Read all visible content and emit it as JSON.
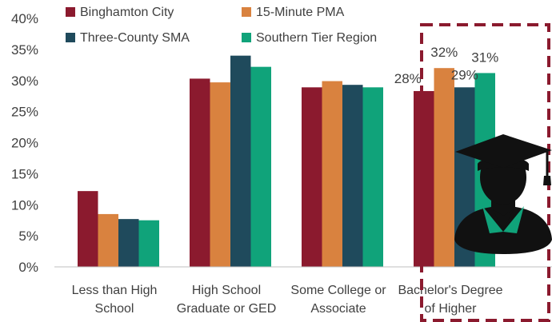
{
  "chart_data": {
    "type": "bar",
    "categories": [
      [
        "Less than High",
        "School"
      ],
      [
        "High School",
        "Graduate or GED"
      ],
      [
        "Some College or",
        "Associate"
      ],
      [
        "Bachelor's Degree",
        "of Higher"
      ]
    ],
    "series": [
      {
        "name": "Binghamton City",
        "color": "#8B1A2E",
        "values": [
          12.2,
          30.3,
          28.9,
          28.3
        ]
      },
      {
        "name": "15-Minute PMA",
        "color": "#D9823F",
        "values": [
          8.5,
          29.7,
          29.9,
          32.0
        ]
      },
      {
        "name": "Three-County SMA",
        "color": "#1F4A5C",
        "values": [
          7.7,
          34.0,
          29.3,
          28.9
        ]
      },
      {
        "name": "Southern Tier Region",
        "color": "#10A37A",
        "values": [
          7.5,
          32.2,
          28.9,
          31.2
        ]
      }
    ],
    "data_labels": {
      "category_index": 3,
      "labels": [
        "28%",
        "32%",
        "29%",
        "31%"
      ]
    },
    "ylim": [
      0,
      40
    ],
    "yticks": [
      "0%",
      "5%",
      "10%",
      "15%",
      "20%",
      "25%",
      "30%",
      "35%",
      "40%"
    ],
    "grid": false,
    "legend_position": "top",
    "highlight": {
      "category_index": 3,
      "style": "dashed box",
      "color": "#8B1A2E"
    },
    "icon": "graduate-icon"
  }
}
